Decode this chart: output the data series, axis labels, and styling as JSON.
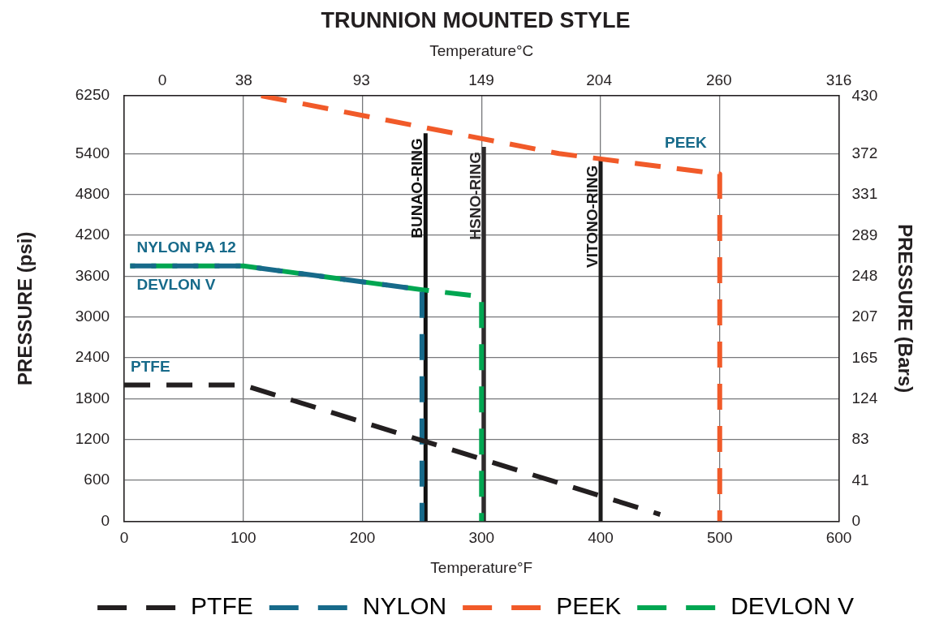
{
  "chart_data": {
    "type": "line",
    "title": "TRUNNION MOUNTED STYLE",
    "xlabel": "Temperature°F",
    "x2label": "Temperature°C",
    "ylabel": "PRESSURE (psi)",
    "y2label": "PRESSURE (Bars)",
    "xlim": [
      0,
      600
    ],
    "xticks": [
      0,
      100,
      200,
      300,
      400,
      500,
      600
    ],
    "x2lim": [
      -17.8,
      316
    ],
    "x2ticks": [
      0,
      38,
      93,
      149,
      204,
      260,
      316
    ],
    "ylim": [
      0,
      6250
    ],
    "yticks": [
      0,
      600,
      1200,
      1800,
      2400,
      3000,
      3600,
      4200,
      4800,
      5400,
      6250
    ],
    "y2lim": [
      0,
      430.9
    ],
    "y2ticks": [
      0,
      41,
      83,
      124,
      165,
      207,
      248,
      289,
      331,
      372,
      430
    ],
    "grid": true,
    "legend": "bottom",
    "marker": "none",
    "series": [
      {
        "name": "PTFE",
        "color": "#231f20",
        "line_style": "dashed",
        "x": [
          0,
          100,
          450
        ],
        "values": [
          2000,
          2000,
          100
        ]
      },
      {
        "name": "NYLON",
        "color": "#176a8a",
        "line_style": "dashed",
        "x": [
          5,
          100,
          250,
          250
        ],
        "values": [
          3750,
          3750,
          3400,
          0
        ]
      },
      {
        "name": "PEEK",
        "color": "#f15a29",
        "line_style": "dashed",
        "x": [
          115,
          365,
          500,
          500
        ],
        "values": [
          6250,
          5400,
          5100,
          0
        ]
      },
      {
        "name": "DEVLON V",
        "color": "#00a651",
        "line_style": "dashed",
        "x": [
          5,
          100,
          250,
          300,
          300
        ],
        "values": [
          3750,
          3750,
          3400,
          3300,
          0
        ]
      },
      {
        "name": "BUNAO-RING",
        "color": "#111111",
        "line_style": "solid",
        "x": [
          253,
          253
        ],
        "values": [
          0,
          5700
        ]
      },
      {
        "name": "HSNO-RING",
        "color": "#2e2b2c",
        "line_style": "solid",
        "x": [
          302,
          302
        ],
        "values": [
          0,
          5500
        ]
      },
      {
        "name": "VITONO-RING",
        "color": "#1b1b1b",
        "line_style": "solid",
        "x": [
          400,
          400
        ],
        "values": [
          0,
          5300
        ]
      }
    ],
    "annotations": [
      {
        "text": "NYLON PA 12",
        "x": 5,
        "y": 3750
      },
      {
        "text": "DEVLON V",
        "x": 5,
        "y": 3750
      },
      {
        "text": "PTFE",
        "x": 0,
        "y": 2000
      },
      {
        "text": "PEEK",
        "x": 500,
        "y": 5100
      }
    ]
  }
}
